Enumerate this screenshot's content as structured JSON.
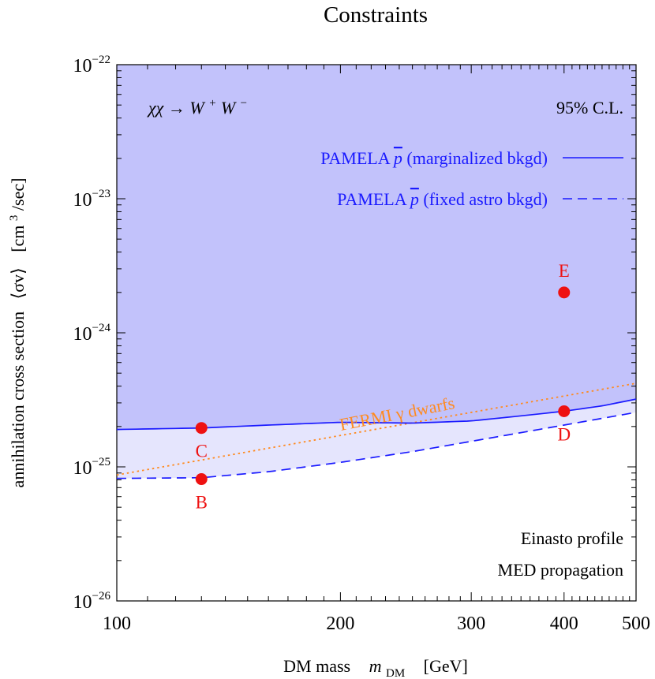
{
  "chart_data": {
    "type": "line",
    "title": "Constraints",
    "xlabel": "DM mass",
    "xlabel_symbol": "m",
    "xlabel_subscript": "DM",
    "xlabel_unit": "[GeV]",
    "ylabel": "annihilation cross section",
    "ylabel_symbol": "⟨σv⟩",
    "ylabel_unit_pre": "[cm",
    "ylabel_unit_exp": "3",
    "ylabel_unit_post": "/sec]",
    "xscale": "log",
    "yscale": "log",
    "xlim": [
      100,
      500
    ],
    "ylim": [
      1e-26,
      1e-22
    ],
    "x_ticks": [
      {
        "value": 100,
        "label": "100"
      },
      {
        "value": 200,
        "label": "200"
      },
      {
        "value": 300,
        "label": "300"
      },
      {
        "value": 400,
        "label": "400"
      },
      {
        "value": 500,
        "label": "500"
      }
    ],
    "y_ticks": [
      {
        "value": 1e-26,
        "base": "10",
        "exp": "−26"
      },
      {
        "value": 1e-25,
        "base": "10",
        "exp": "−25"
      },
      {
        "value": 1e-24,
        "base": "10",
        "exp": "−24"
      },
      {
        "value": 1e-23,
        "base": "10",
        "exp": "−23"
      },
      {
        "value": 1e-22,
        "base": "10",
        "exp": "−22"
      }
    ],
    "series": [
      {
        "name": "PAMELA p̄ (marginalized bkgd)",
        "legend_pre": "PAMELA ",
        "legend_symbol": "p",
        "legend_post": " (marginalized bkgd)",
        "style": "solid",
        "color": "#1a1aff",
        "x": [
          100,
          130,
          160,
          200,
          250,
          300,
          350,
          400,
          450,
          500
        ],
        "y": [
          1.9e-25,
          1.95e-25,
          2.05e-25,
          2.15e-25,
          2.12e-25,
          2.2e-25,
          2.4e-25,
          2.6e-25,
          2.85e-25,
          3.2e-25
        ]
      },
      {
        "name": "PAMELA p̄ (fixed astro bkgd)",
        "legend_pre": "PAMELA ",
        "legend_symbol": "p",
        "legend_post": " (fixed astro bkgd)",
        "style": "dashed",
        "color": "#1a1aff",
        "x": [
          100,
          130,
          160,
          200,
          250,
          300,
          350,
          400,
          450,
          500
        ],
        "y": [
          8.2e-26,
          8.3e-26,
          9.2e-26,
          1.08e-25,
          1.3e-25,
          1.55e-25,
          1.8e-25,
          2.05e-25,
          2.3e-25,
          2.55e-25
        ]
      },
      {
        "name": "FERMI γ dwarfs",
        "style": "dotted",
        "color": "#ff8a1f",
        "x": [
          100,
          500
        ],
        "y": [
          8.7e-26,
          4.2e-25
        ]
      }
    ],
    "points": [
      {
        "label": "B",
        "x": 130,
        "y": 8.1e-26,
        "label_pos": "below"
      },
      {
        "label": "C",
        "x": 130,
        "y": 1.95e-25,
        "label_pos": "below"
      },
      {
        "label": "D",
        "x": 400,
        "y": 2.6e-25,
        "label_pos": "below"
      },
      {
        "label": "E",
        "x": 400,
        "y": 2e-24,
        "label_pos": "above"
      }
    ],
    "process_pre": "χχ → W",
    "process_sup1": "+",
    "process_mid": "W",
    "process_sup2": "−",
    "confidence": "95% C.L.",
    "annotations": [
      "Einasto profile",
      "MED propagation"
    ],
    "colors": {
      "excluded_region": "#c2c2fb",
      "band": "#e5e5fd",
      "curve": "#1a1aff",
      "fermi": "#ff8a1f",
      "points": "#ee1111"
    }
  }
}
